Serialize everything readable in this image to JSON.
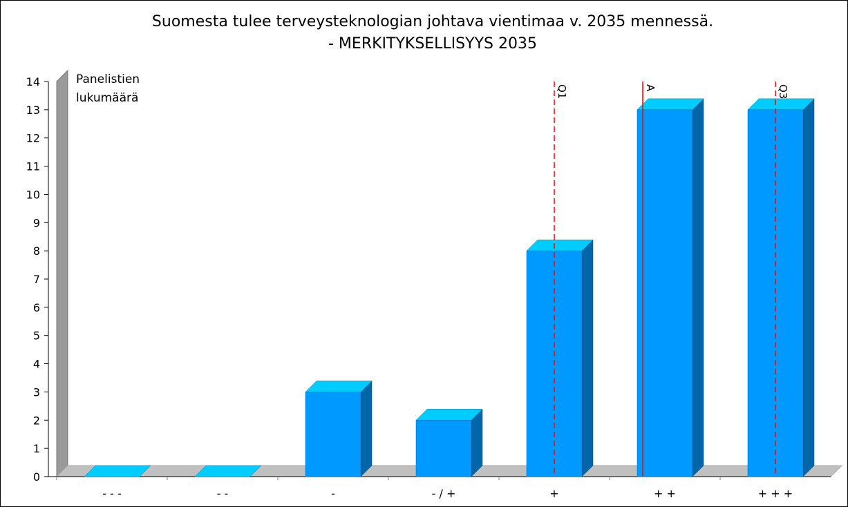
{
  "chart_data": {
    "type": "bar3d",
    "title": [
      "Suomesta tulee terveysteknologian johtava vientimaa v. 2035 mennessä.",
      "- MERKITYKSELLISYYS 2035"
    ],
    "ylabel": [
      "Panelistien",
      "lukumäärä"
    ],
    "categories": [
      "- - -",
      "- -",
      "-",
      "- / +",
      "+",
      "+ +",
      "+ + +"
    ],
    "values": [
      0,
      0,
      3,
      2,
      8,
      13,
      13
    ],
    "colors": {
      "front": "#0099ff",
      "top": "#00ccff",
      "side": "#0066aa"
    },
    "ylim": [
      0,
      14
    ],
    "yticks": [
      0,
      1,
      2,
      3,
      4,
      5,
      6,
      7,
      8,
      9,
      10,
      11,
      12,
      13,
      14
    ],
    "markers": [
      {
        "label": "Q1",
        "position": 4.0,
        "style": "dashed",
        "color": "#ff0000"
      },
      {
        "label": "A",
        "position": 4.8,
        "style": "solid",
        "color": "#ff0000"
      },
      {
        "label": "Q3",
        "position": 6.0,
        "style": "dashed",
        "color": "#ff0000"
      }
    ]
  }
}
